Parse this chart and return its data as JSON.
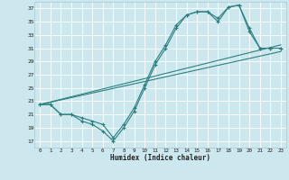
{
  "xlabel": "Humidex (Indice chaleur)",
  "bg_color": "#cce8ee",
  "grid_color": "#ffffff",
  "line_color": "#2d7f7f",
  "xlim": [
    -0.5,
    23.5
  ],
  "ylim": [
    16,
    38
  ],
  "xticks": [
    0,
    1,
    2,
    3,
    4,
    5,
    6,
    7,
    8,
    9,
    10,
    11,
    12,
    13,
    14,
    15,
    16,
    17,
    18,
    19,
    20,
    21,
    22,
    23
  ],
  "yticks": [
    17,
    19,
    21,
    23,
    25,
    27,
    29,
    31,
    33,
    35,
    37
  ],
  "series_zigzag1": {
    "x": [
      0,
      1,
      2,
      3,
      4,
      5,
      6,
      7,
      8,
      9,
      10,
      11,
      12,
      13,
      14,
      15,
      16,
      17,
      18,
      19,
      20,
      21,
      22,
      23
    ],
    "y": [
      22.5,
      22.5,
      21,
      21,
      20,
      19.5,
      18.5,
      17,
      19,
      21.5,
      25,
      28.5,
      31,
      34,
      36,
      36.5,
      36.5,
      35,
      37.2,
      37.5,
      34,
      31,
      31,
      31
    ]
  },
  "series_zigzag2": {
    "x": [
      0,
      1,
      2,
      3,
      4,
      5,
      6,
      7,
      8,
      9,
      10,
      11,
      12,
      13,
      14,
      15,
      16,
      17,
      18,
      19,
      20,
      21,
      22,
      23
    ],
    "y": [
      22.5,
      22.5,
      21,
      21,
      20.5,
      20,
      19.5,
      17.5,
      19.5,
      22,
      25.5,
      29,
      31.5,
      34.5,
      36,
      36.5,
      36.5,
      35.5,
      37.2,
      37.5,
      33.5,
      31,
      31,
      31
    ]
  },
  "series_line1": {
    "x": [
      0,
      23
    ],
    "y": [
      22.5,
      31.5
    ]
  },
  "series_line2": {
    "x": [
      0,
      23
    ],
    "y": [
      22.5,
      30.5
    ]
  }
}
